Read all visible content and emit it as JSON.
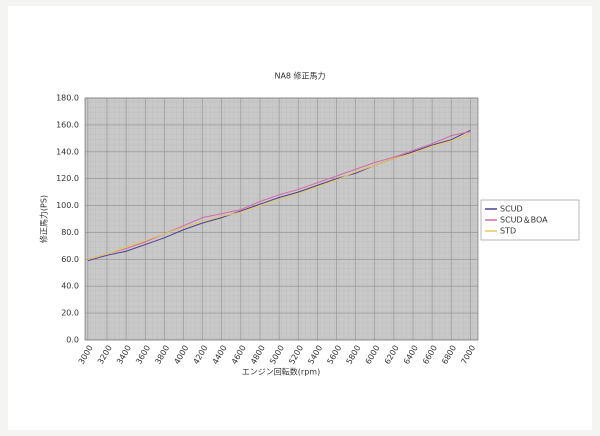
{
  "chart_data": {
    "type": "line",
    "title": "NA8 修正馬力",
    "x_label": "エンジン回転数(rpm)",
    "y_label": "修正馬力(PS)",
    "x": [
      3000,
      3200,
      3400,
      3600,
      3800,
      4000,
      4200,
      4400,
      4600,
      4800,
      5000,
      5200,
      5400,
      5600,
      5800,
      6000,
      6200,
      6400,
      6600,
      6800,
      7000
    ],
    "series": [
      {
        "name": "SCUD",
        "color": "#4b3f93",
        "values": [
          59,
          63,
          66,
          71,
          76,
          82,
          87,
          91,
          96,
          101,
          106,
          110,
          115,
          120,
          124,
          130,
          135,
          140,
          145,
          149,
          156
        ]
      },
      {
        "name": "SCUD＆BOA",
        "color": "#d868a8",
        "values": [
          60,
          64,
          68,
          73,
          79,
          85,
          91,
          94,
          97,
          103,
          108,
          112,
          117,
          122,
          127,
          132,
          136,
          141,
          146,
          152,
          155
        ]
      },
      {
        "name": "STD",
        "color": "#e6c75a",
        "values": [
          60,
          64,
          69,
          74,
          79,
          84,
          88,
          92,
          95,
          100,
          104,
          109,
          114,
          119,
          125,
          130,
          135,
          139,
          144,
          148,
          153
        ]
      }
    ],
    "xlim": [
      2970,
      7080
    ],
    "xticks": [
      3000,
      3200,
      3400,
      3600,
      3800,
      4000,
      4200,
      4400,
      4600,
      4800,
      5000,
      5200,
      5400,
      5600,
      5800,
      6000,
      6200,
      6400,
      6600,
      6800,
      7000
    ],
    "ylim": [
      0,
      180
    ],
    "yticks": [
      {
        "value": 0,
        "label": "0.0"
      },
      {
        "value": 20,
        "label": "20.0"
      },
      {
        "value": 40,
        "label": "40.0"
      },
      {
        "value": 60,
        "label": "60.0"
      },
      {
        "value": 80,
        "label": "80.0"
      },
      {
        "value": 100,
        "label": "100.0"
      },
      {
        "value": 120,
        "label": "120.0"
      },
      {
        "value": 140,
        "label": "140.0"
      },
      {
        "value": 160,
        "label": "160.0"
      },
      {
        "value": 180,
        "label": "180.0"
      }
    ],
    "grid": true,
    "legend": "right"
  }
}
